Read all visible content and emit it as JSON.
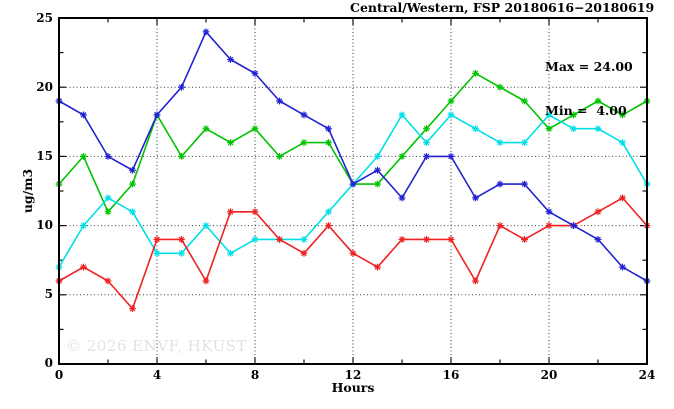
{
  "chart_data": {
    "type": "line",
    "title": "Central/Western, FSP 20180616−20180619",
    "xlabel": "Hours",
    "ylabel": "ug/m3",
    "xlim": [
      0,
      24
    ],
    "ylim": [
      0,
      25
    ],
    "grid": true,
    "legend_position": "none",
    "x_tick_labels": [
      "0",
      "4",
      "8",
      "12",
      "16",
      "20",
      "24"
    ],
    "y_tick_labels": [
      "0",
      "5",
      "10",
      "15",
      "20",
      "25"
    ],
    "x_ticks_major": [
      0,
      4,
      8,
      12,
      16,
      20,
      24
    ],
    "x_ticks_minor": [
      2,
      6,
      10,
      14,
      18,
      22
    ],
    "y_ticks_major": [
      0,
      5,
      10,
      15,
      20,
      25
    ],
    "y_ticks_minor": [
      2.5,
      7.5,
      12.5,
      17.5,
      22.5
    ],
    "grid_x": [
      4,
      8,
      12,
      16,
      20
    ],
    "grid_y": [
      5,
      10,
      15,
      20
    ],
    "annotation": {
      "line1": "Max = 24.00",
      "line2": "Min =  4.00"
    },
    "stats": {
      "max": 24.0,
      "min": 4.0
    },
    "watermark": "© 2026 ENVF, HKUST",
    "x": [
      0,
      1,
      2,
      3,
      4,
      5,
      6,
      7,
      8,
      9,
      10,
      11,
      12,
      13,
      14,
      15,
      16,
      17,
      18,
      19,
      20,
      21,
      22,
      23,
      24
    ],
    "series": [
      {
        "name": "green",
        "color": "#00c300",
        "marker": "asterisk",
        "values": [
          13,
          15,
          11,
          13,
          18,
          15,
          17,
          16,
          17,
          15,
          16,
          16,
          13,
          13,
          15,
          17,
          19,
          21,
          20,
          19,
          17,
          18,
          19,
          18,
          19
        ]
      },
      {
        "name": "cyan",
        "color": "#00dfe6",
        "marker": "asterisk",
        "values": [
          7,
          10,
          12,
          11,
          8,
          8,
          10,
          8,
          9,
          9,
          9,
          11,
          13,
          15,
          18,
          16,
          18,
          17,
          16,
          16,
          18,
          17,
          17,
          16,
          13
        ]
      },
      {
        "name": "red",
        "color": "#ee2222",
        "marker": "asterisk",
        "values": [
          6,
          7,
          6,
          4,
          9,
          9,
          6,
          11,
          11,
          9,
          8,
          10,
          8,
          7,
          9,
          9,
          9,
          6,
          10,
          9,
          10,
          10,
          11,
          12,
          10
        ]
      },
      {
        "name": "blue",
        "color": "#2222d2",
        "marker": "asterisk",
        "values": [
          19,
          18,
          15,
          14,
          18,
          20,
          24,
          22,
          21,
          19,
          18,
          17,
          13,
          14,
          12,
          15,
          15,
          12,
          13,
          13,
          11,
          10,
          9,
          7,
          6
        ]
      }
    ],
    "colors": {
      "frame": "#000000",
      "grid": "#3c3c3c",
      "tick": "#111111",
      "watermark": "#e2e2e2",
      "background": "#ffffff"
    }
  }
}
